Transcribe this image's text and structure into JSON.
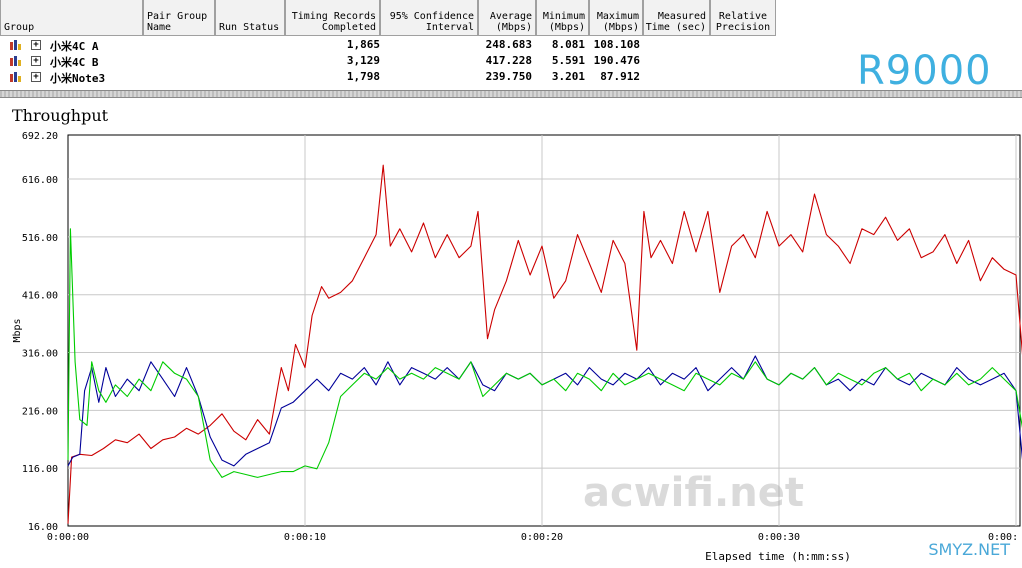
{
  "table": {
    "headers": [
      {
        "lines": [
          "Group"
        ],
        "align": "left"
      },
      {
        "lines": [
          "Pair Group",
          "Name"
        ],
        "align": "left"
      },
      {
        "lines": [
          "Run Status"
        ],
        "align": "left"
      },
      {
        "lines": [
          "Timing Records",
          "Completed"
        ],
        "align": "right"
      },
      {
        "lines": [
          "95% Confidence",
          "Interval"
        ],
        "align": "right"
      },
      {
        "lines": [
          "Average",
          "(Mbps)"
        ],
        "align": "right"
      },
      {
        "lines": [
          "Minimum",
          "(Mbps)"
        ],
        "align": "right"
      },
      {
        "lines": [
          "Maximum",
          "(Mbps)"
        ],
        "align": "right"
      },
      {
        "lines": [
          "Measured",
          "Time (sec)"
        ],
        "align": "right"
      },
      {
        "lines": [
          "Relative",
          "Precision"
        ],
        "align": "center"
      }
    ],
    "rows": [
      {
        "expander": "+",
        "name": "小米4C A",
        "records": "1,865",
        "average": "248.683",
        "minimum": "8.081",
        "maximum": "108.108"
      },
      {
        "expander": "+",
        "name": "小米4C B",
        "records": "3,129",
        "average": "417.228",
        "minimum": "5.591",
        "maximum": "190.476"
      },
      {
        "expander": "+",
        "name": "小米Note3",
        "records": "1,798",
        "average": "239.750",
        "minimum": "3.201",
        "maximum": "87.912"
      }
    ]
  },
  "watermarks": {
    "model": "R9000",
    "site": "acwifi.net",
    "corner": "SMYZ.NET"
  },
  "chart_data": {
    "type": "line",
    "title": "Throughput",
    "xlabel": "Elapsed time (h:mm:ss)",
    "ylabel": "Mbps",
    "ylim": [
      16.0,
      692.2
    ],
    "xlim": [
      0,
      40.5
    ],
    "yticks": [
      16.0,
      116.0,
      216.0,
      316.0,
      416.0,
      516.0,
      616.0,
      692.2
    ],
    "ytick_labels": [
      "16.00",
      "116.00",
      "216.00",
      "316.00",
      "416.00",
      "516.00",
      "616.00",
      "692.20"
    ],
    "xticks": [
      0,
      10,
      20,
      30,
      40
    ],
    "xtick_labels": [
      "0:00:00",
      "0:00:10",
      "0:00:20",
      "0:00:30",
      "0:00:"
    ],
    "grid": true,
    "series": [
      {
        "color": "#cc0000",
        "values": [
          [
            0.0,
            20
          ],
          [
            0.15,
            135
          ],
          [
            0.5,
            140
          ],
          [
            1,
            138
          ],
          [
            1.5,
            150
          ],
          [
            2,
            165
          ],
          [
            2.5,
            160
          ],
          [
            3,
            175
          ],
          [
            3.5,
            150
          ],
          [
            4,
            165
          ],
          [
            4.5,
            170
          ],
          [
            5,
            185
          ],
          [
            5.5,
            175
          ],
          [
            6,
            190
          ],
          [
            6.5,
            210
          ],
          [
            7,
            180
          ],
          [
            7.5,
            165
          ],
          [
            8,
            200
          ],
          [
            8.5,
            175
          ],
          [
            9,
            290
          ],
          [
            9.3,
            250
          ],
          [
            9.6,
            330
          ],
          [
            10,
            290
          ],
          [
            10.3,
            380
          ],
          [
            10.7,
            430
          ],
          [
            11,
            410
          ],
          [
            11.5,
            420
          ],
          [
            12,
            440
          ],
          [
            12.5,
            480
          ],
          [
            13,
            520
          ],
          [
            13.3,
            640
          ],
          [
            13.6,
            500
          ],
          [
            14,
            530
          ],
          [
            14.5,
            490
          ],
          [
            15,
            540
          ],
          [
            15.5,
            480
          ],
          [
            16,
            520
          ],
          [
            16.5,
            480
          ],
          [
            17,
            500
          ],
          [
            17.3,
            560
          ],
          [
            17.7,
            340
          ],
          [
            18,
            390
          ],
          [
            18.5,
            440
          ],
          [
            19,
            510
          ],
          [
            19.5,
            450
          ],
          [
            20,
            500
          ],
          [
            20.5,
            410
          ],
          [
            21,
            440
          ],
          [
            21.5,
            520
          ],
          [
            22,
            470
          ],
          [
            22.5,
            420
          ],
          [
            23,
            510
          ],
          [
            23.5,
            470
          ],
          [
            24,
            320
          ],
          [
            24.3,
            560
          ],
          [
            24.6,
            480
          ],
          [
            25,
            510
          ],
          [
            25.5,
            470
          ],
          [
            26,
            560
          ],
          [
            26.5,
            490
          ],
          [
            27,
            560
          ],
          [
            27.5,
            420
          ],
          [
            28,
            500
          ],
          [
            28.5,
            520
          ],
          [
            29,
            480
          ],
          [
            29.5,
            560
          ],
          [
            30,
            500
          ],
          [
            30.5,
            520
          ],
          [
            31,
            490
          ],
          [
            31.5,
            590
          ],
          [
            32,
            520
          ],
          [
            32.5,
            500
          ],
          [
            33,
            470
          ],
          [
            33.5,
            530
          ],
          [
            34,
            520
          ],
          [
            34.5,
            550
          ],
          [
            35,
            510
          ],
          [
            35.5,
            530
          ],
          [
            36,
            480
          ],
          [
            36.5,
            490
          ],
          [
            37,
            520
          ],
          [
            37.5,
            470
          ],
          [
            38,
            510
          ],
          [
            38.5,
            440
          ],
          [
            39,
            480
          ],
          [
            39.5,
            460
          ],
          [
            40,
            450
          ],
          [
            40.3,
            300
          ]
        ]
      },
      {
        "color": "#000099",
        "values": [
          [
            0.0,
            120
          ],
          [
            0.2,
            135
          ],
          [
            0.5,
            140
          ],
          [
            0.7,
            250
          ],
          [
            1,
            290
          ],
          [
            1.3,
            230
          ],
          [
            1.6,
            290
          ],
          [
            2,
            240
          ],
          [
            2.5,
            270
          ],
          [
            3,
            250
          ],
          [
            3.5,
            300
          ],
          [
            4,
            270
          ],
          [
            4.5,
            240
          ],
          [
            5,
            290
          ],
          [
            5.5,
            240
          ],
          [
            6,
            170
          ],
          [
            6.5,
            130
          ],
          [
            7,
            120
          ],
          [
            7.5,
            140
          ],
          [
            8,
            150
          ],
          [
            8.5,
            160
          ],
          [
            9,
            220
          ],
          [
            9.5,
            230
          ],
          [
            10,
            250
          ],
          [
            10.5,
            270
          ],
          [
            11,
            250
          ],
          [
            11.5,
            280
          ],
          [
            12,
            270
          ],
          [
            12.5,
            290
          ],
          [
            13,
            260
          ],
          [
            13.5,
            300
          ],
          [
            14,
            260
          ],
          [
            14.5,
            290
          ],
          [
            15,
            280
          ],
          [
            15.5,
            270
          ],
          [
            16,
            290
          ],
          [
            16.5,
            270
          ],
          [
            17,
            300
          ],
          [
            17.5,
            260
          ],
          [
            18,
            250
          ],
          [
            18.5,
            280
          ],
          [
            19,
            270
          ],
          [
            19.5,
            280
          ],
          [
            20,
            260
          ],
          [
            20.5,
            270
          ],
          [
            21,
            280
          ],
          [
            21.5,
            260
          ],
          [
            22,
            290
          ],
          [
            22.5,
            270
          ],
          [
            23,
            260
          ],
          [
            23.5,
            280
          ],
          [
            24,
            270
          ],
          [
            24.5,
            290
          ],
          [
            25,
            260
          ],
          [
            25.5,
            280
          ],
          [
            26,
            270
          ],
          [
            26.5,
            290
          ],
          [
            27,
            250
          ],
          [
            27.5,
            270
          ],
          [
            28,
            290
          ],
          [
            28.5,
            270
          ],
          [
            29,
            310
          ],
          [
            29.5,
            270
          ],
          [
            30,
            260
          ],
          [
            30.5,
            280
          ],
          [
            31,
            270
          ],
          [
            31.5,
            290
          ],
          [
            32,
            260
          ],
          [
            32.5,
            270
          ],
          [
            33,
            250
          ],
          [
            33.5,
            270
          ],
          [
            34,
            260
          ],
          [
            34.5,
            290
          ],
          [
            35,
            270
          ],
          [
            35.5,
            260
          ],
          [
            36,
            280
          ],
          [
            36.5,
            270
          ],
          [
            37,
            260
          ],
          [
            37.5,
            290
          ],
          [
            38,
            270
          ],
          [
            38.5,
            260
          ],
          [
            39,
            270
          ],
          [
            39.5,
            280
          ],
          [
            40,
            250
          ],
          [
            40.3,
            120
          ]
        ]
      },
      {
        "color": "#00cc00",
        "values": [
          [
            0.0,
            130
          ],
          [
            0.1,
            530
          ],
          [
            0.3,
            300
          ],
          [
            0.5,
            200
          ],
          [
            0.8,
            190
          ],
          [
            1,
            300
          ],
          [
            1.3,
            250
          ],
          [
            1.6,
            230
          ],
          [
            2,
            260
          ],
          [
            2.5,
            240
          ],
          [
            3,
            270
          ],
          [
            3.5,
            250
          ],
          [
            4,
            300
          ],
          [
            4.5,
            280
          ],
          [
            5,
            270
          ],
          [
            5.5,
            240
          ],
          [
            6,
            130
          ],
          [
            6.5,
            100
          ],
          [
            7,
            110
          ],
          [
            7.5,
            105
          ],
          [
            8,
            100
          ],
          [
            8.5,
            105
          ],
          [
            9,
            110
          ],
          [
            9.5,
            110
          ],
          [
            10,
            120
          ],
          [
            10.5,
            115
          ],
          [
            11,
            160
          ],
          [
            11.5,
            240
          ],
          [
            12,
            260
          ],
          [
            12.5,
            280
          ],
          [
            13,
            270
          ],
          [
            13.5,
            290
          ],
          [
            14,
            270
          ],
          [
            14.5,
            280
          ],
          [
            15,
            270
          ],
          [
            15.5,
            290
          ],
          [
            16,
            280
          ],
          [
            16.5,
            270
          ],
          [
            17,
            300
          ],
          [
            17.5,
            240
          ],
          [
            18,
            260
          ],
          [
            18.5,
            280
          ],
          [
            19,
            270
          ],
          [
            19.5,
            280
          ],
          [
            20,
            260
          ],
          [
            20.5,
            270
          ],
          [
            21,
            250
          ],
          [
            21.5,
            280
          ],
          [
            22,
            270
          ],
          [
            22.5,
            250
          ],
          [
            23,
            280
          ],
          [
            23.5,
            260
          ],
          [
            24,
            270
          ],
          [
            24.5,
            280
          ],
          [
            25,
            270
          ],
          [
            25.5,
            260
          ],
          [
            26,
            250
          ],
          [
            26.5,
            280
          ],
          [
            27,
            270
          ],
          [
            27.5,
            260
          ],
          [
            28,
            280
          ],
          [
            28.5,
            270
          ],
          [
            29,
            300
          ],
          [
            29.5,
            270
          ],
          [
            30,
            260
          ],
          [
            30.5,
            280
          ],
          [
            31,
            270
          ],
          [
            31.5,
            290
          ],
          [
            32,
            260
          ],
          [
            32.5,
            280
          ],
          [
            33,
            270
          ],
          [
            33.5,
            260
          ],
          [
            34,
            280
          ],
          [
            34.5,
            290
          ],
          [
            35,
            270
          ],
          [
            35.5,
            280
          ],
          [
            36,
            250
          ],
          [
            36.5,
            270
          ],
          [
            37,
            260
          ],
          [
            37.5,
            280
          ],
          [
            38,
            260
          ],
          [
            38.5,
            270
          ],
          [
            39,
            290
          ],
          [
            39.5,
            270
          ],
          [
            40,
            250
          ],
          [
            40.3,
            180
          ]
        ]
      }
    ]
  }
}
